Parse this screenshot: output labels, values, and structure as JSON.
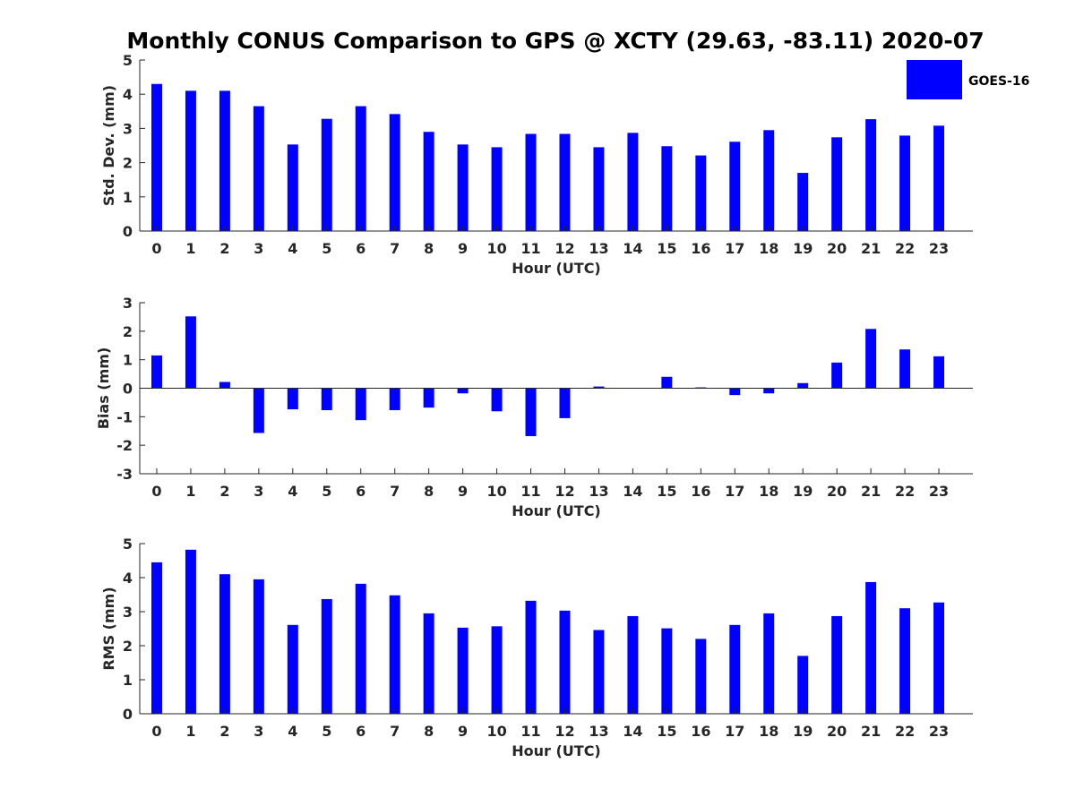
{
  "title": "Monthly CONUS Comparison to GPS @ XCTY (29.63, -83.11) 2020-07",
  "colors": {
    "bar": "#0000ff",
    "axis": "#262626",
    "background": "#ffffff"
  },
  "legend": {
    "label": "GOES-16",
    "placement": "top-right"
  },
  "chart_data": [
    {
      "type": "bar",
      "name": "stddev",
      "title": "",
      "xlabel": "Hour (UTC)",
      "ylabel": "Std. Dev. (mm)",
      "ylim": [
        0,
        5
      ],
      "yticks": [
        0,
        1,
        2,
        3,
        4,
        5
      ],
      "categories": [
        "0",
        "1",
        "2",
        "3",
        "4",
        "5",
        "6",
        "7",
        "8",
        "9",
        "10",
        "11",
        "12",
        "13",
        "14",
        "15",
        "16",
        "17",
        "18",
        "19",
        "20",
        "21",
        "22",
        "23"
      ],
      "series": [
        {
          "name": "GOES-16",
          "values": [
            4.3,
            4.1,
            4.1,
            3.65,
            2.53,
            3.28,
            3.65,
            3.42,
            2.9,
            2.53,
            2.45,
            2.84,
            2.84,
            2.45,
            2.87,
            2.48,
            2.21,
            2.61,
            2.95,
            1.7,
            2.74,
            3.27,
            2.79,
            3.08
          ]
        }
      ],
      "grid": false
    },
    {
      "type": "bar",
      "name": "bias",
      "title": "",
      "xlabel": "Hour (UTC)",
      "ylabel": "Bias (mm)",
      "ylim": [
        -3,
        3
      ],
      "yticks": [
        -3,
        -2,
        -1,
        0,
        1,
        2,
        3
      ],
      "categories": [
        "0",
        "1",
        "2",
        "3",
        "4",
        "5",
        "6",
        "7",
        "8",
        "9",
        "10",
        "11",
        "12",
        "13",
        "14",
        "15",
        "16",
        "17",
        "18",
        "19",
        "20",
        "21",
        "22",
        "23"
      ],
      "series": [
        {
          "name": "GOES-16",
          "values": [
            1.15,
            2.52,
            0.22,
            -1.57,
            -0.74,
            -0.77,
            -1.12,
            -0.77,
            -0.68,
            -0.18,
            -0.81,
            -1.68,
            -1.05,
            0.06,
            0.0,
            0.4,
            0.03,
            -0.24,
            -0.18,
            0.18,
            0.9,
            2.08,
            1.36,
            1.12
          ]
        }
      ],
      "grid": false
    },
    {
      "type": "bar",
      "name": "rms",
      "title": "",
      "xlabel": "Hour (UTC)",
      "ylabel": "RMS (mm)",
      "ylim": [
        0,
        5
      ],
      "yticks": [
        0,
        1,
        2,
        3,
        4,
        5
      ],
      "categories": [
        "0",
        "1",
        "2",
        "3",
        "4",
        "5",
        "6",
        "7",
        "8",
        "9",
        "10",
        "11",
        "12",
        "13",
        "14",
        "15",
        "16",
        "17",
        "18",
        "19",
        "20",
        "21",
        "22",
        "23"
      ],
      "series": [
        {
          "name": "GOES-16",
          "values": [
            4.45,
            4.82,
            4.1,
            3.95,
            2.61,
            3.37,
            3.82,
            3.48,
            2.95,
            2.53,
            2.57,
            3.32,
            3.03,
            2.46,
            2.87,
            2.51,
            2.2,
            2.61,
            2.95,
            1.7,
            2.87,
            3.87,
            3.1,
            3.27
          ]
        }
      ],
      "grid": false
    }
  ]
}
